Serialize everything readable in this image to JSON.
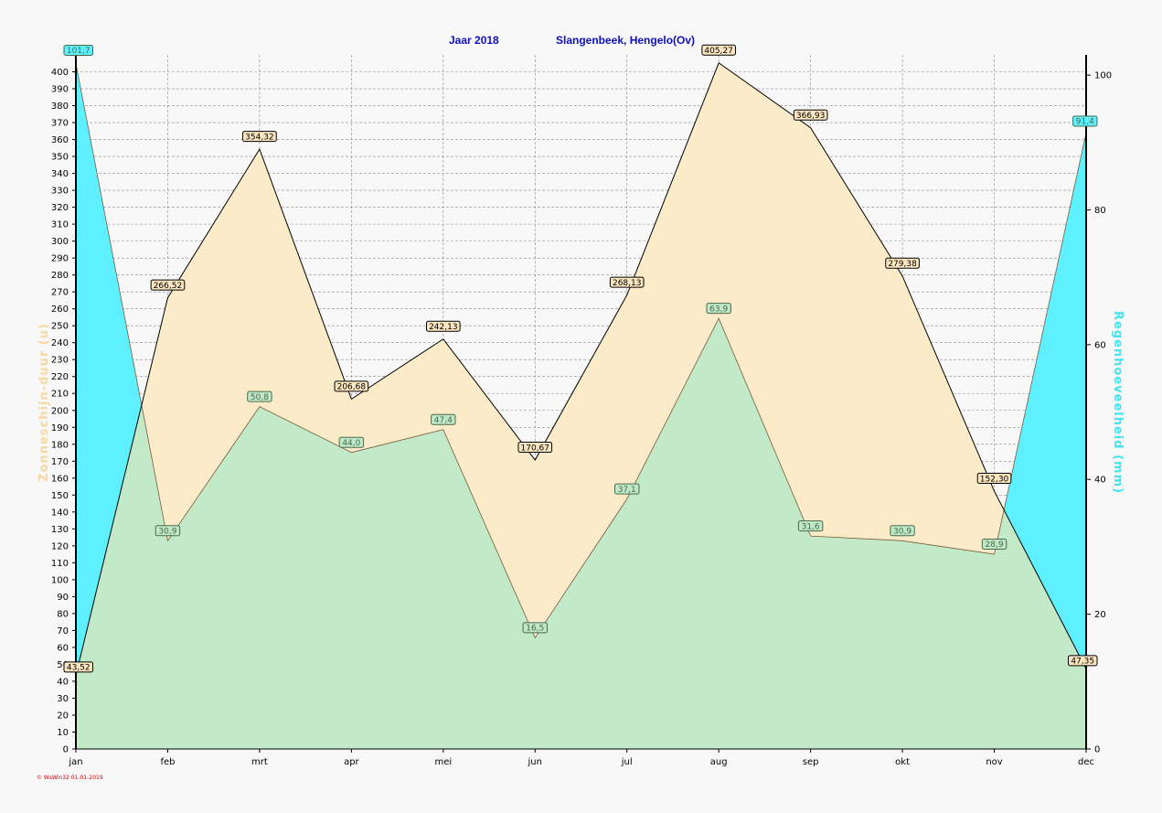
{
  "chart_data": {
    "type": "area",
    "title_year": "Jaar  2018",
    "title_station": "Slangenbeek, Hengelo(Ov)",
    "categories": [
      "jan",
      "feb",
      "mrt",
      "apr",
      "mei",
      "jun",
      "jul",
      "aug",
      "sep",
      "okt",
      "nov",
      "dec"
    ],
    "ylabel_left": "Zonneschijn-duur  (u)",
    "ylabel_right": "Regenhoeveelheid  (mm)",
    "ylim_left": [
      0,
      410
    ],
    "ylim_right": [
      0,
      103
    ],
    "yticks_left": [
      0,
      10,
      20,
      30,
      40,
      50,
      60,
      70,
      80,
      90,
      100,
      110,
      120,
      130,
      140,
      150,
      160,
      170,
      180,
      190,
      200,
      210,
      220,
      230,
      240,
      250,
      260,
      270,
      280,
      290,
      300,
      310,
      320,
      330,
      340,
      350,
      360,
      370,
      380,
      390,
      400
    ],
    "yticks_right": [
      0,
      20,
      40,
      60,
      80,
      100
    ],
    "series": [
      {
        "axis": "left",
        "color": "#fbebc8",
        "label_fill": "#fbe6c0",
        "values": [
          43.52,
          266.52,
          354.32,
          206.68,
          242.13,
          170.67,
          268.13,
          405.27,
          366.93,
          279.38,
          152.3,
          47.35
        ],
        "labels": [
          "43,52",
          "266,52",
          "354,32",
          "206,68",
          "242,13",
          "170,67",
          "268,13",
          "405,27",
          "366,93",
          "279,38",
          "152,30",
          "47,35"
        ]
      },
      {
        "axis": "right",
        "color": "#c2eac8",
        "label_fill": "#bfe8c8",
        "values": [
          101.7,
          30.9,
          50.8,
          44.0,
          47.4,
          16.5,
          37.1,
          63.9,
          31.6,
          30.9,
          28.9,
          91.4
        ],
        "labels": [
          "101,7",
          "30,9",
          "50,8",
          "44,0",
          "47,4",
          "16,5",
          "37,1",
          "63,9",
          "31,6",
          "30,9",
          "28,9",
          "91,4"
        ]
      }
    ],
    "colors": {
      "rain_highlight": "#5ff0ff"
    },
    "grid": true
  },
  "footer": {
    "copyright": "© WsWin32  01-01-2019"
  }
}
